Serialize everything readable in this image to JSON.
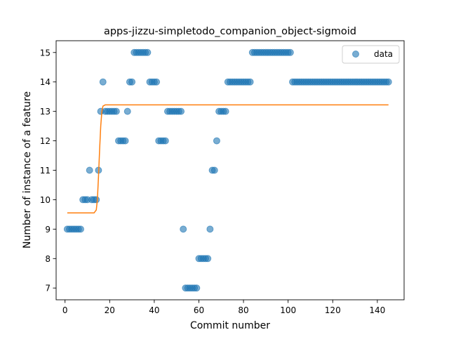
{
  "chart_data": {
    "type": "scatter",
    "title": "apps-jizzu-simpletodo_companion_object-sigmoid",
    "xlabel": "Commit number",
    "ylabel": "Number of instance of a feature",
    "xlim": [
      -4,
      152
    ],
    "ylim": [
      6.6,
      15.4
    ],
    "xticks": [
      0,
      20,
      40,
      60,
      80,
      100,
      120,
      140
    ],
    "yticks": [
      7,
      8,
      9,
      10,
      11,
      12,
      13,
      14,
      15
    ],
    "grid": false,
    "legend": {
      "position": "top-right",
      "entries": [
        "data"
      ]
    },
    "colors": {
      "data": "#1f77b4",
      "fit": "#ff7f0e"
    },
    "series": [
      {
        "name": "data",
        "kind": "scatter",
        "points": [
          [
            1,
            9
          ],
          [
            2,
            9
          ],
          [
            3,
            9
          ],
          [
            4,
            9
          ],
          [
            5,
            9
          ],
          [
            6,
            9
          ],
          [
            7,
            9
          ],
          [
            8,
            10
          ],
          [
            9,
            10
          ],
          [
            10,
            10
          ],
          [
            11,
            11
          ],
          [
            12,
            10
          ],
          [
            13,
            10
          ],
          [
            14,
            10
          ],
          [
            15,
            11
          ],
          [
            16,
            13
          ],
          [
            17,
            14
          ],
          [
            18,
            13
          ],
          [
            19,
            13
          ],
          [
            20,
            13
          ],
          [
            21,
            13
          ],
          [
            22,
            13
          ],
          [
            23,
            13
          ],
          [
            24,
            12
          ],
          [
            25,
            12
          ],
          [
            26,
            12
          ],
          [
            27,
            12
          ],
          [
            28,
            13
          ],
          [
            29,
            14
          ],
          [
            30,
            14
          ],
          [
            31,
            15
          ],
          [
            32,
            15
          ],
          [
            33,
            15
          ],
          [
            34,
            15
          ],
          [
            35,
            15
          ],
          [
            36,
            15
          ],
          [
            37,
            15
          ],
          [
            38,
            14
          ],
          [
            39,
            14
          ],
          [
            40,
            14
          ],
          [
            41,
            14
          ],
          [
            42,
            12
          ],
          [
            43,
            12
          ],
          [
            44,
            12
          ],
          [
            45,
            12
          ],
          [
            46,
            13
          ],
          [
            47,
            13
          ],
          [
            48,
            13
          ],
          [
            49,
            13
          ],
          [
            50,
            13
          ],
          [
            51,
            13
          ],
          [
            52,
            13
          ],
          [
            53,
            9
          ],
          [
            54,
            7
          ],
          [
            55,
            7
          ],
          [
            56,
            7
          ],
          [
            57,
            7
          ],
          [
            58,
            7
          ],
          [
            59,
            7
          ],
          [
            60,
            8
          ],
          [
            61,
            8
          ],
          [
            62,
            8
          ],
          [
            63,
            8
          ],
          [
            64,
            8
          ],
          [
            65,
            9
          ],
          [
            66,
            11
          ],
          [
            67,
            11
          ],
          [
            68,
            12
          ],
          [
            69,
            13
          ],
          [
            70,
            13
          ],
          [
            71,
            13
          ],
          [
            72,
            13
          ],
          [
            73,
            14
          ],
          [
            74,
            14
          ],
          [
            75,
            14
          ],
          [
            76,
            14
          ],
          [
            77,
            14
          ],
          [
            78,
            14
          ],
          [
            79,
            14
          ],
          [
            80,
            14
          ],
          [
            81,
            14
          ],
          [
            82,
            14
          ],
          [
            83,
            14
          ],
          [
            84,
            15
          ],
          [
            85,
            15
          ],
          [
            86,
            15
          ],
          [
            87,
            15
          ],
          [
            88,
            15
          ],
          [
            89,
            15
          ],
          [
            90,
            15
          ],
          [
            91,
            15
          ],
          [
            92,
            15
          ],
          [
            93,
            15
          ],
          [
            94,
            15
          ],
          [
            95,
            15
          ],
          [
            96,
            15
          ],
          [
            97,
            15
          ],
          [
            98,
            15
          ],
          [
            99,
            15
          ],
          [
            100,
            15
          ],
          [
            101,
            15
          ],
          [
            102,
            14
          ],
          [
            103,
            14
          ],
          [
            104,
            14
          ],
          [
            105,
            14
          ],
          [
            106,
            14
          ],
          [
            107,
            14
          ],
          [
            108,
            14
          ],
          [
            109,
            14
          ],
          [
            110,
            14
          ],
          [
            111,
            14
          ],
          [
            112,
            14
          ],
          [
            113,
            14
          ],
          [
            114,
            14
          ],
          [
            115,
            14
          ],
          [
            116,
            14
          ],
          [
            117,
            14
          ],
          [
            118,
            14
          ],
          [
            119,
            14
          ],
          [
            120,
            14
          ],
          [
            121,
            14
          ],
          [
            122,
            14
          ],
          [
            123,
            14
          ],
          [
            124,
            14
          ],
          [
            125,
            14
          ],
          [
            126,
            14
          ],
          [
            127,
            14
          ],
          [
            128,
            14
          ],
          [
            129,
            14
          ],
          [
            130,
            14
          ],
          [
            131,
            14
          ],
          [
            132,
            14
          ],
          [
            133,
            14
          ],
          [
            134,
            14
          ],
          [
            135,
            14
          ],
          [
            136,
            14
          ],
          [
            137,
            14
          ],
          [
            138,
            14
          ],
          [
            139,
            14
          ],
          [
            140,
            14
          ],
          [
            141,
            14
          ],
          [
            142,
            14
          ],
          [
            143,
            14
          ],
          [
            144,
            14
          ],
          [
            145,
            14
          ]
        ]
      },
      {
        "name": "",
        "kind": "line",
        "points": [
          [
            1,
            9.55
          ],
          [
            13,
            9.55
          ],
          [
            14,
            9.65
          ],
          [
            14.5,
            10.0
          ],
          [
            15,
            10.8
          ],
          [
            15.5,
            11.7
          ],
          [
            16,
            12.5
          ],
          [
            16.5,
            13.0
          ],
          [
            17,
            13.18
          ],
          [
            18,
            13.22
          ],
          [
            145,
            13.22
          ]
        ]
      }
    ]
  }
}
